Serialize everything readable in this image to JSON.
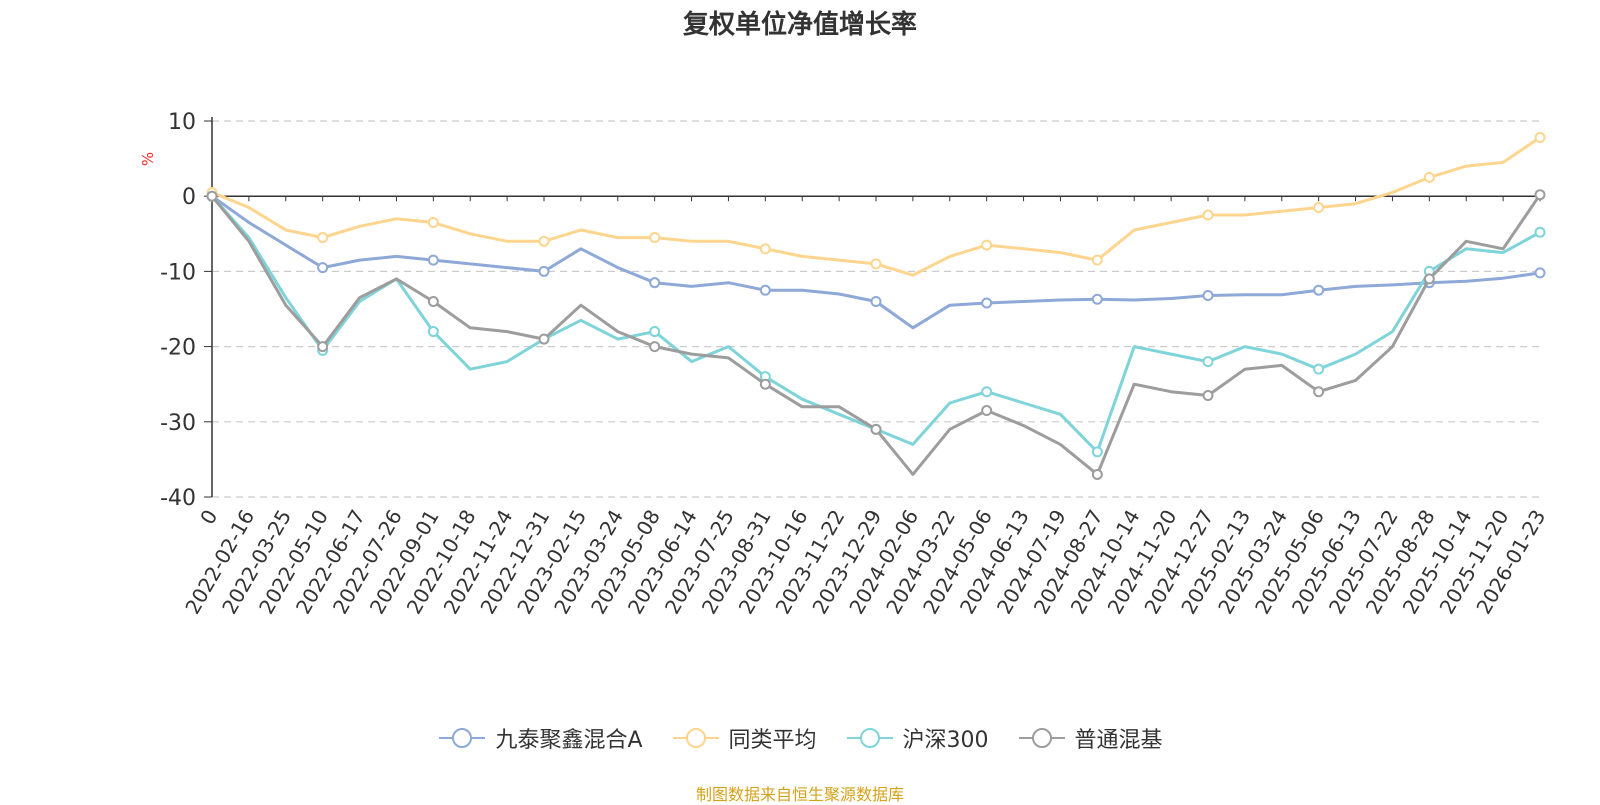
{
  "chart_data": {
    "type": "line",
    "title": "复权单位净值增长率",
    "ylabel": "%",
    "xlabel": "",
    "ylim": [
      -40,
      10
    ],
    "yticks": [
      10,
      0,
      -10,
      -20,
      -30,
      -40
    ],
    "categories": [
      "0",
      "2022-02-16",
      "2022-03-25",
      "2022-05-10",
      "2022-06-17",
      "2022-07-26",
      "2022-09-01",
      "2022-10-18",
      "2022-11-24",
      "2022-12-31",
      "2023-02-15",
      "2023-03-24",
      "2023-05-08",
      "2023-06-14",
      "2023-07-25",
      "2023-08-31",
      "2023-10-16",
      "2023-11-22",
      "2023-12-29",
      "2024-02-06",
      "2024-03-22",
      "2024-05-06",
      "2024-06-13",
      "2024-07-19",
      "2024-08-27",
      "2024-10-14",
      "2024-11-20",
      "2024-12-27",
      "2025-02-13",
      "2025-03-24",
      "2025-05-06",
      "2025-06-13",
      "2025-07-22",
      "2025-08-28",
      "2025-10-14",
      "2025-11-20",
      "2026-01-23"
    ],
    "series": [
      {
        "name": "九泰聚鑫混合A",
        "color": "#8ea8d8",
        "values": [
          0,
          -3.5,
          -6.5,
          -9.5,
          -8.5,
          -8,
          -8.5,
          -9,
          -9.5,
          -10,
          -7,
          -9.5,
          -11.5,
          -12,
          -11.5,
          -12.5,
          -12.5,
          -13,
          -14,
          -17.5,
          -14.5,
          -14.2,
          -14,
          -13.8,
          -13.7,
          -13.8,
          -13.6,
          -13.2,
          -13.1,
          -13.1,
          -12.5,
          -12,
          -11.8,
          -11.5,
          -11.3,
          -10.9,
          -10.2
        ]
      },
      {
        "name": "同类平均",
        "color": "#fdd58e",
        "values": [
          0.5,
          -1.5,
          -4.5,
          -5.5,
          -4,
          -3,
          -3.5,
          -5,
          -6,
          -6,
          -4.5,
          -5.5,
          -5.5,
          -6,
          -6,
          -7,
          -8,
          -8.5,
          -9,
          -10.5,
          -8,
          -6.5,
          -7,
          -7.5,
          -8.5,
          -4.5,
          -3.5,
          -2.5,
          -2.5,
          -2,
          -1.5,
          -1,
          0.5,
          2.5,
          4,
          4.5,
          7.8
        ]
      },
      {
        "name": "沪深300",
        "color": "#7ed4d8",
        "values": [
          0,
          -5.5,
          -13.5,
          -20.5,
          -14,
          -11,
          -18,
          -23,
          -22,
          -19,
          -16.5,
          -19,
          -18,
          -22,
          -20,
          -24,
          -27,
          -29,
          -31,
          -33,
          -27.5,
          -26,
          -27.5,
          -29,
          -34,
          -20,
          -21,
          -22,
          -20,
          -21,
          -23,
          -21,
          -18,
          -10,
          -7,
          -7.5,
          -4.8
        ]
      },
      {
        "name": "普通混基",
        "color": "#9d9d9d",
        "values": [
          0,
          -6,
          -14.5,
          -20,
          -13.5,
          -11,
          -14,
          -17.5,
          -18,
          -19,
          -14.5,
          -18,
          -20,
          -21,
          -21.5,
          -25,
          -28,
          -28,
          -31,
          -37,
          -31,
          -28.5,
          -30.5,
          -33,
          -37,
          -25,
          -26,
          -26.5,
          -23,
          -22.5,
          -26,
          -24.5,
          -20,
          -11,
          -6,
          -7,
          0.2
        ]
      }
    ]
  },
  "legend": {
    "items": [
      {
        "label": "九泰聚鑫混合A",
        "color": "#8ea8d8"
      },
      {
        "label": "同类平均",
        "color": "#fdd58e"
      },
      {
        "label": "沪深300",
        "color": "#7ed4d8"
      },
      {
        "label": "普通混基",
        "color": "#9d9d9d"
      }
    ]
  },
  "source": "制图数据来自恒生聚源数据库"
}
